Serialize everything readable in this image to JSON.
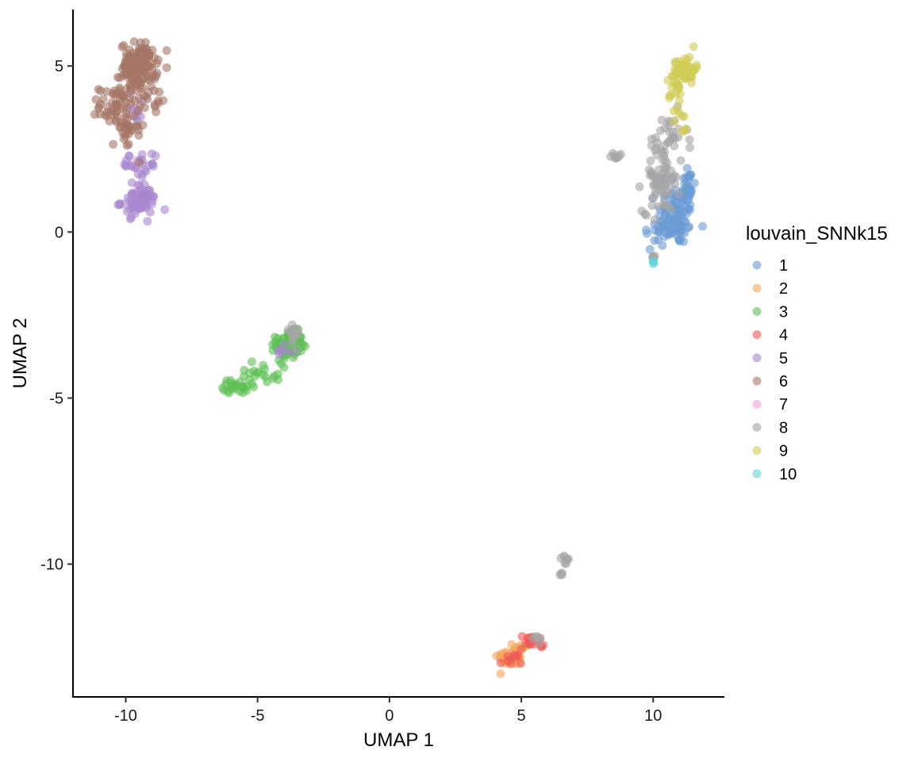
{
  "chart_data": {
    "type": "scatter",
    "xlabel": "UMAP 1",
    "ylabel": "UMAP 2",
    "xlim": [
      -12,
      12.7
    ],
    "ylim": [
      -14,
      6.7
    ],
    "xticks": [
      -10,
      -5,
      0,
      5,
      10
    ],
    "yticks": [
      -10,
      -5,
      0,
      5
    ],
    "grid": false,
    "point_opacity": 0.6,
    "legend": {
      "title": "louvain_SNNk15",
      "placement": "right",
      "entries": [
        "1",
        "2",
        "3",
        "4",
        "5",
        "6",
        "7",
        "8",
        "9",
        "10"
      ]
    },
    "series": [
      {
        "name": "1",
        "color": "#6A9BD3",
        "clusters": [
          {
            "x": 10.9,
            "y": 0.5,
            "sx": 0.35,
            "sy": 0.45,
            "n": 90
          },
          {
            "x": 11.3,
            "y": 1.4,
            "sx": 0.15,
            "sy": 0.35,
            "n": 25
          },
          {
            "x": 10.2,
            "y": 0.0,
            "sx": 0.3,
            "sy": 0.3,
            "n": 20
          }
        ]
      },
      {
        "name": "2",
        "color": "#F5A65B",
        "clusters": [
          {
            "x": 4.6,
            "y": -12.8,
            "sx": 0.25,
            "sy": 0.12,
            "n": 50
          },
          {
            "x": 5.0,
            "y": -12.5,
            "sx": 0.15,
            "sy": 0.08,
            "n": 10
          }
        ]
      },
      {
        "name": "3",
        "color": "#5DBF54",
        "clusters": [
          {
            "x": -3.8,
            "y": -3.4,
            "sx": 0.25,
            "sy": 0.2,
            "n": 110
          },
          {
            "x": -4.7,
            "y": -4.2,
            "sx": 0.6,
            "sy": 0.2,
            "n": 20
          },
          {
            "x": -5.8,
            "y": -4.65,
            "sx": 0.25,
            "sy": 0.1,
            "n": 25
          }
        ]
      },
      {
        "name": "4",
        "color": "#EF5A56",
        "clusters": [
          {
            "x": 5.4,
            "y": -12.35,
            "sx": 0.25,
            "sy": 0.12,
            "n": 18
          },
          {
            "x": 4.6,
            "y": -12.9,
            "sx": 0.2,
            "sy": 0.1,
            "n": 10
          }
        ]
      },
      {
        "name": "5",
        "color": "#A887CF",
        "clusters": [
          {
            "x": -9.5,
            "y": 0.9,
            "sx": 0.35,
            "sy": 0.2,
            "n": 60
          },
          {
            "x": -9.3,
            "y": 1.7,
            "sx": 0.2,
            "sy": 0.3,
            "n": 25
          },
          {
            "x": -9.9,
            "y": 2.2,
            "sx": 0.15,
            "sy": 0.2,
            "n": 8
          },
          {
            "x": -9.6,
            "y": 3.6,
            "sx": 0.3,
            "sy": 0.3,
            "n": 10
          },
          {
            "x": -4.0,
            "y": -3.6,
            "sx": 0.2,
            "sy": 0.1,
            "n": 6
          }
        ]
      },
      {
        "name": "6",
        "color": "#A57466",
        "clusters": [
          {
            "x": -9.5,
            "y": 5.0,
            "sx": 0.35,
            "sy": 0.35,
            "n": 130
          },
          {
            "x": -10.3,
            "y": 3.8,
            "sx": 0.35,
            "sy": 0.3,
            "n": 60
          },
          {
            "x": -9.9,
            "y": 3.0,
            "sx": 0.3,
            "sy": 0.3,
            "n": 25
          },
          {
            "x": -9.0,
            "y": 4.0,
            "sx": 0.3,
            "sy": 0.25,
            "n": 12
          }
        ]
      },
      {
        "name": "7",
        "color": "#F19ED3",
        "clusters": []
      },
      {
        "name": "8",
        "color": "#A5A5A5",
        "clusters": [
          {
            "x": 10.3,
            "y": 1.6,
            "sx": 0.35,
            "sy": 0.5,
            "n": 70
          },
          {
            "x": 10.6,
            "y": 2.8,
            "sx": 0.35,
            "sy": 0.4,
            "n": 25
          },
          {
            "x": 8.6,
            "y": 2.3,
            "sx": 0.1,
            "sy": 0.06,
            "n": 8
          },
          {
            "x": 10.0,
            "y": -0.8,
            "sx": 0.06,
            "sy": 0.06,
            "n": 4
          },
          {
            "x": 6.7,
            "y": -9.9,
            "sx": 0.08,
            "sy": 0.08,
            "n": 8
          },
          {
            "x": 6.5,
            "y": -10.3,
            "sx": 0.05,
            "sy": 0.05,
            "n": 4
          },
          {
            "x": 5.6,
            "y": -12.2,
            "sx": 0.15,
            "sy": 0.1,
            "n": 5
          },
          {
            "x": -3.7,
            "y": -3.0,
            "sx": 0.2,
            "sy": 0.2,
            "n": 12
          }
        ]
      },
      {
        "name": "9",
        "color": "#D1CC57",
        "clusters": [
          {
            "x": 11.2,
            "y": 4.9,
            "sx": 0.2,
            "sy": 0.2,
            "n": 60
          },
          {
            "x": 10.9,
            "y": 4.1,
            "sx": 0.15,
            "sy": 0.35,
            "n": 20
          },
          {
            "x": 11.1,
            "y": 3.2,
            "sx": 0.1,
            "sy": 0.2,
            "n": 5
          }
        ]
      },
      {
        "name": "10",
        "color": "#5ED3D8",
        "clusters": [
          {
            "x": 10.0,
            "y": -0.9,
            "sx": 0.04,
            "sy": 0.03,
            "n": 3
          }
        ]
      }
    ]
  }
}
